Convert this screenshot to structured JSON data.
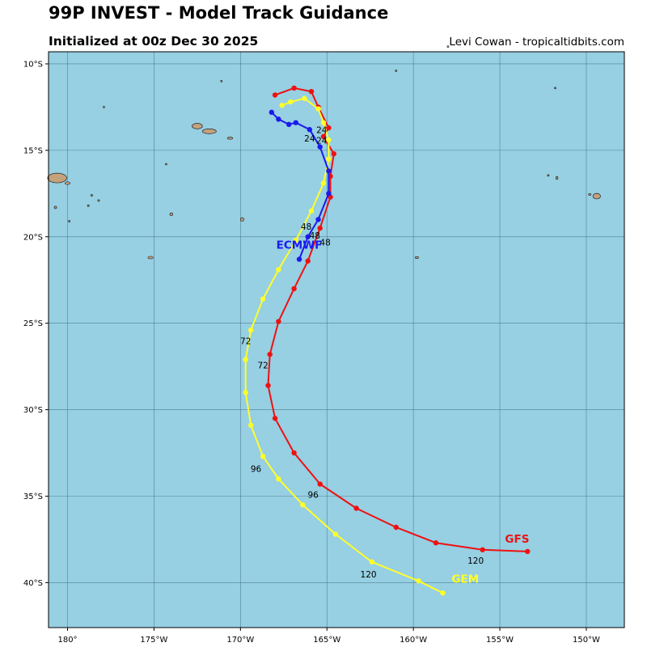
{
  "header": {
    "title": "99P INVEST - Model Track Guidance",
    "subtitle": "Initialized at 00z Dec 30 2025",
    "credit": "Levi Cowan - tropicaltidbits.com"
  },
  "colors": {
    "ocean": "#97cfe3",
    "land": "#c4a27c",
    "grid": "#3f6f7f",
    "GFS": "#ee1111",
    "GEM": "#ffff2a",
    "ECMWF": "#1a1aee"
  },
  "map": {
    "lon_range": [
      -181.1,
      -147.8
    ],
    "lat_range": [
      -42.6,
      -9.3
    ],
    "lon_ticks": [
      {
        "lon": -180,
        "label": "180°"
      },
      {
        "lon": -175,
        "label": "175°W"
      },
      {
        "lon": -170,
        "label": "170°W"
      },
      {
        "lon": -165,
        "label": "165°W"
      },
      {
        "lon": -160,
        "label": "160°W"
      },
      {
        "lon": -155,
        "label": "155°W"
      },
      {
        "lon": -150,
        "label": "150°W"
      }
    ],
    "lat_ticks": [
      {
        "lat": -10,
        "label": "10°S"
      },
      {
        "lat": -15,
        "label": "15°S"
      },
      {
        "lat": -20,
        "label": "20°S"
      },
      {
        "lat": -25,
        "label": "25°S"
      },
      {
        "lat": -30,
        "label": "30°S"
      },
      {
        "lat": -35,
        "label": "35°S"
      },
      {
        "lat": -40,
        "label": "40°S"
      }
    ],
    "islands": [
      {
        "name": "Upolu",
        "lon": -171.8,
        "lat": -13.9,
        "rx": 0.4,
        "ry": 0.14
      },
      {
        "name": "Savaii",
        "lon": -172.5,
        "lat": -13.6,
        "rx": 0.3,
        "ry": 0.16
      },
      {
        "name": "Tutuila",
        "lon": -170.6,
        "lat": -14.3,
        "rx": 0.15,
        "ry": 0.06
      },
      {
        "name": "Vava'u",
        "lon": -174.0,
        "lat": -18.7,
        "rx": 0.08,
        "ry": 0.08
      },
      {
        "name": "Tongatapu",
        "lon": -175.2,
        "lat": -21.2,
        "rx": 0.15,
        "ry": 0.07
      },
      {
        "name": "Niue",
        "lon": -169.9,
        "lat": -19.0,
        "rx": 0.1,
        "ry": 0.1
      },
      {
        "name": "Vanua Levu",
        "lon": -180.6,
        "lat": -16.6,
        "rx": 0.55,
        "ry": 0.28
      },
      {
        "name": "Taveuni",
        "lon": -180.0,
        "lat": -16.9,
        "rx": 0.14,
        "ry": 0.08
      },
      {
        "name": "Lau 1",
        "lon": -178.6,
        "lat": -17.6,
        "rx": 0.05,
        "ry": 0.05
      },
      {
        "name": "Lau 2",
        "lon": -178.2,
        "lat": -17.9,
        "rx": 0.05,
        "ry": 0.05
      },
      {
        "name": "Lau 3",
        "lon": -178.8,
        "lat": -18.2,
        "rx": 0.05,
        "ry": 0.05
      },
      {
        "name": "Lau 4",
        "lon": -180.7,
        "lat": -18.3,
        "rx": 0.07,
        "ry": 0.07
      },
      {
        "name": "Lau 5",
        "lon": -179.9,
        "lat": -19.1,
        "rx": 0.05,
        "ry": 0.05
      },
      {
        "name": "Tonga north",
        "lon": -174.3,
        "lat": -15.8,
        "rx": 0.04,
        "ry": 0.04
      },
      {
        "name": "Rotuma",
        "lon": -177.9,
        "lat": -12.5,
        "rx": 0.05,
        "ry": 0.04
      },
      {
        "name": "Swains",
        "lon": -171.1,
        "lat": -11.0,
        "rx": 0.04,
        "ry": 0.04
      },
      {
        "name": "Rarotonga",
        "lon": -159.8,
        "lat": -21.2,
        "rx": 0.1,
        "ry": 0.05
      },
      {
        "name": "Aitutaki",
        "lon": -151.7,
        "lat": -16.6,
        "rx": 0.06,
        "ry": 0.08
      },
      {
        "name": "Maupiti",
        "lon": -152.2,
        "lat": -16.45,
        "rx": 0.05,
        "ry": 0.04
      },
      {
        "name": "Tahiti",
        "lon": -149.4,
        "lat": -17.65,
        "rx": 0.22,
        "ry": 0.16
      },
      {
        "name": "Moorea",
        "lon": -149.8,
        "lat": -17.55,
        "rx": 0.07,
        "ry": 0.05
      },
      {
        "name": "Penrhyn",
        "lon": -158.0,
        "lat": -9.0,
        "rx": 0.03,
        "ry": 0.03
      },
      {
        "name": "Manihiki",
        "lon": -161.0,
        "lat": -10.4,
        "rx": 0.03,
        "ry": 0.03
      },
      {
        "name": "Northern atoll",
        "lon": -151.8,
        "lat": -11.4,
        "rx": 0.03,
        "ry": 0.03
      }
    ]
  },
  "chart_data": {
    "type": "map-tracks",
    "series": [
      {
        "name": "GFS",
        "color": "#ee1111",
        "points": [
          [
            -168.0,
            -11.8
          ],
          [
            -166.9,
            -11.4
          ],
          [
            -165.9,
            -11.6
          ],
          [
            -165.5,
            -12.5
          ],
          [
            -164.9,
            -13.7
          ],
          [
            -165.2,
            -14.2
          ],
          [
            -164.6,
            -15.2
          ],
          [
            -164.8,
            -16.5
          ],
          [
            -164.8,
            -17.7
          ],
          [
            -165.4,
            -19.5
          ],
          [
            -166.1,
            -21.4
          ],
          [
            -166.9,
            -23.0
          ],
          [
            -167.8,
            -24.9
          ],
          [
            -168.3,
            -26.8
          ],
          [
            -168.4,
            -28.6
          ],
          [
            -168.0,
            -30.5
          ],
          [
            -166.9,
            -32.5
          ],
          [
            -165.4,
            -34.3
          ],
          [
            -163.3,
            -35.7
          ],
          [
            -161.0,
            -36.8
          ],
          [
            -158.7,
            -37.7
          ],
          [
            -156.0,
            -38.1
          ],
          [
            -153.4,
            -38.2
          ]
        ],
        "hour_labels": [
          {
            "text": "24",
            "lon": -165.3,
            "lat": -14.0
          },
          {
            "text": "48",
            "lon": -165.7,
            "lat": -20.1
          },
          {
            "text": "72",
            "lon": -168.7,
            "lat": -27.6
          },
          {
            "text": "96",
            "lon": -165.8,
            "lat": -35.1
          },
          {
            "text": "120",
            "lon": -156.4,
            "lat": -38.9
          }
        ],
        "label": "GFS",
        "label_pos": {
          "lon": -154.0,
          "lat": -37.7
        }
      },
      {
        "name": "GEM",
        "color": "#ffff2a",
        "points": [
          [
            -167.6,
            -12.4
          ],
          [
            -167.1,
            -12.2
          ],
          [
            -166.3,
            -12.0
          ],
          [
            -165.5,
            -12.6
          ],
          [
            -165.2,
            -13.4
          ],
          [
            -164.9,
            -14.4
          ],
          [
            -164.9,
            -15.5
          ],
          [
            -165.2,
            -16.9
          ],
          [
            -165.9,
            -18.5
          ],
          [
            -166.8,
            -20.2
          ],
          [
            -167.8,
            -21.9
          ],
          [
            -168.7,
            -23.6
          ],
          [
            -169.4,
            -25.4
          ],
          [
            -169.7,
            -27.1
          ],
          [
            -169.7,
            -29.0
          ],
          [
            -169.4,
            -30.9
          ],
          [
            -168.7,
            -32.7
          ],
          [
            -167.8,
            -34.0
          ],
          [
            -166.4,
            -35.5
          ],
          [
            -164.5,
            -37.2
          ],
          [
            -162.4,
            -38.8
          ],
          [
            -159.7,
            -39.9
          ],
          [
            -158.3,
            -40.6
          ]
        ],
        "hour_labels": [
          {
            "text": "48",
            "lon": -166.2,
            "lat": -19.6
          },
          {
            "text": "72",
            "lon": -169.7,
            "lat": -26.2
          },
          {
            "text": "96",
            "lon": -169.1,
            "lat": -33.6
          },
          {
            "text": "120",
            "lon": -162.6,
            "lat": -39.7
          }
        ],
        "label": "GEM",
        "label_pos": {
          "lon": -157.0,
          "lat": -40.0
        }
      },
      {
        "name": "ECMWF",
        "color": "#1a1aee",
        "points": [
          [
            -168.2,
            -12.8
          ],
          [
            -167.8,
            -13.2
          ],
          [
            -167.2,
            -13.5
          ],
          [
            -166.8,
            -13.4
          ],
          [
            -166.0,
            -13.8
          ],
          [
            -165.4,
            -14.8
          ],
          [
            -164.9,
            -16.2
          ],
          [
            -164.9,
            -17.5
          ],
          [
            -165.5,
            -19.0
          ],
          [
            -166.1,
            -20.0
          ],
          [
            -166.6,
            -21.3
          ]
        ],
        "hour_labels": [
          {
            "text": "24",
            "lon": -166.0,
            "lat": -14.5
          },
          {
            "text": "24",
            "lon": -165.3,
            "lat": -14.6
          },
          {
            "text": "48",
            "lon": -165.1,
            "lat": -20.5
          }
        ],
        "label": "ECMWF",
        "label_pos": {
          "lon": -166.6,
          "lat": -20.7
        }
      }
    ]
  }
}
